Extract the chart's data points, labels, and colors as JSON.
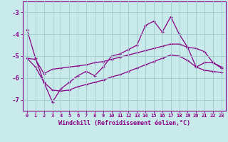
{
  "xlabel": "Windchill (Refroidissement éolien,°C)",
  "bg_color": "#c8eaea",
  "line_color": "#880088",
  "grid_color": "#a0cccc",
  "x": [
    0,
    1,
    2,
    3,
    4,
    5,
    6,
    7,
    8,
    9,
    10,
    11,
    12,
    13,
    14,
    15,
    16,
    17,
    18,
    19,
    20,
    21,
    22,
    23
  ],
  "y_main": [
    -3.8,
    -5.1,
    -6.2,
    -7.1,
    -6.5,
    -6.2,
    -5.9,
    -5.7,
    -5.9,
    -5.5,
    -5.0,
    -4.9,
    -4.7,
    -4.5,
    -3.6,
    -3.4,
    -3.9,
    -3.2,
    -4.0,
    -4.6,
    -5.5,
    -5.3,
    -5.3,
    -5.55
  ],
  "y_upper": [
    -5.1,
    -5.15,
    -5.8,
    -5.6,
    -5.55,
    -5.5,
    -5.45,
    -5.4,
    -5.3,
    -5.25,
    -5.15,
    -5.05,
    -4.95,
    -4.85,
    -4.75,
    -4.65,
    -4.55,
    -4.45,
    -4.45,
    -4.6,
    -4.65,
    -4.8,
    -5.3,
    -5.5
  ],
  "y_lower": [
    -5.1,
    -5.5,
    -6.2,
    -6.55,
    -6.6,
    -6.55,
    -6.4,
    -6.3,
    -6.2,
    -6.1,
    -5.95,
    -5.85,
    -5.7,
    -5.55,
    -5.4,
    -5.25,
    -5.1,
    -4.95,
    -5.0,
    -5.2,
    -5.5,
    -5.65,
    -5.7,
    -5.75
  ],
  "ylim": [
    -7.5,
    -2.5
  ],
  "yticks": [
    -7,
    -6,
    -5,
    -4,
    -3
  ],
  "xlim": [
    -0.5,
    23.5
  ],
  "xticks": [
    0,
    1,
    2,
    3,
    4,
    5,
    6,
    7,
    8,
    9,
    10,
    11,
    12,
    13,
    14,
    15,
    16,
    17,
    18,
    19,
    20,
    21,
    22,
    23
  ]
}
